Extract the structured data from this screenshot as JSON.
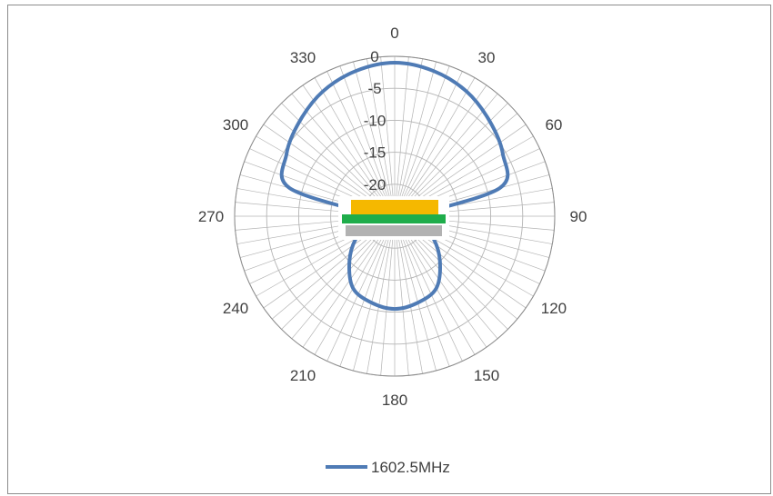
{
  "chart_data": {
    "type": "line",
    "polar": true,
    "title": "",
    "angle_unit": "degrees",
    "angle_ticks": [
      "0",
      "30",
      "60",
      "90",
      "120",
      "150",
      "180",
      "210",
      "240",
      "270",
      "300",
      "330"
    ],
    "radial_ticks": [
      "0",
      "-5",
      "-10",
      "-15",
      "-20"
    ],
    "radial_range": [
      -25,
      0
    ],
    "grid": true,
    "angular_grid_step": 5,
    "legend_position": "bottom",
    "colors": {
      "series": "#4f7bb5",
      "grid": "#b4b4b4",
      "inset_top": "#f5b800",
      "inset_middle": "#1fad4b",
      "inset_bottom": "#b2b2b2"
    },
    "series": [
      {
        "name": "1602.5MHz",
        "theta": [
          0,
          15,
          30,
          45,
          60,
          75,
          90,
          105,
          120,
          135,
          150,
          165,
          180,
          195,
          210,
          225,
          240,
          255,
          270,
          285,
          300,
          315,
          330,
          345,
          360
        ],
        "r": [
          -1,
          -1.5,
          -2.5,
          -4,
          -5.5,
          -8,
          -22,
          -21,
          -18,
          -15,
          -12,
          -11,
          -10.5,
          -11,
          -12,
          -15,
          -18,
          -21,
          -22,
          -8,
          -5.5,
          -4,
          -2.5,
          -1.5,
          -1
        ]
      }
    ]
  }
}
